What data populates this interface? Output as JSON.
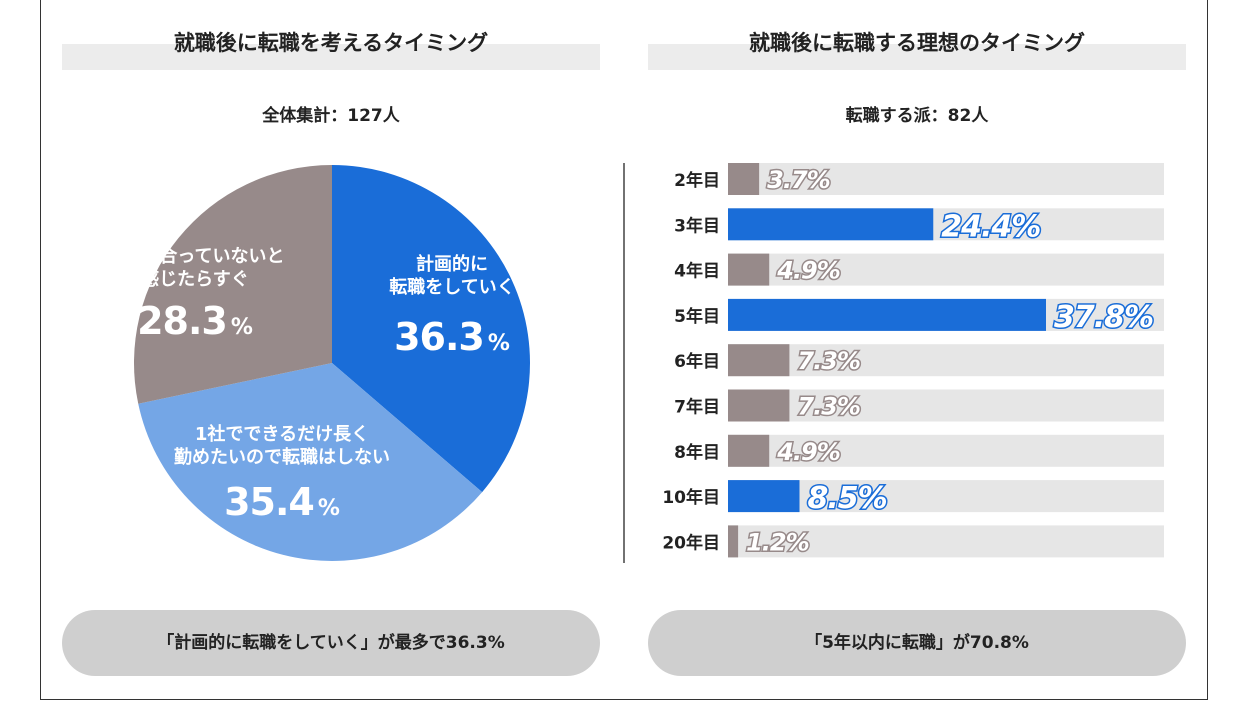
{
  "left_panel": {
    "title": "就職後に転職を考えるタイミング",
    "subtitle": "全体集計：127人",
    "summary": "「計画的に転職をしていく」が最多で36.3%"
  },
  "right_panel": {
    "title": "就職後に転職する理想のタイミング",
    "subtitle": "転職する派：82人",
    "summary": "「5年以内に転職」が70.8%"
  },
  "chart_data": [
    {
      "type": "pie",
      "slices": [
        {
          "label_lines": [
            "計画的に",
            "転職をしていく"
          ],
          "value": 36.3,
          "value_text": "36.3",
          "color": "#1a6dd8"
        },
        {
          "label_lines": [
            "1社でできるだけ長く",
            "勤めたいので転職はしない"
          ],
          "value": 35.4,
          "value_text": "35.4",
          "color": "#74a6e6"
        },
        {
          "label_lines": [
            "自分に合っていないと",
            "感じたらすぐ"
          ],
          "value": 28.3,
          "value_text": "28.3",
          "color": "#978a8a"
        }
      ],
      "percent_sign": "%",
      "start_angle_deg": 0,
      "direction": "clockwise"
    },
    {
      "type": "bar",
      "orientation": "horizontal",
      "categories": [
        "2年目",
        "3年目",
        "4年目",
        "5年目",
        "6年目",
        "7年目",
        "8年目",
        "10年目",
        "20年目"
      ],
      "values": [
        3.7,
        24.4,
        4.9,
        37.8,
        7.3,
        7.3,
        4.9,
        8.5,
        1.2
      ],
      "value_labels": [
        "3.7%",
        "24.4%",
        "4.9%",
        "37.8%",
        "7.3%",
        "7.3%",
        "4.9%",
        "8.5%",
        "1.2%"
      ],
      "highlight": [
        false,
        true,
        false,
        true,
        false,
        false,
        false,
        true,
        false
      ],
      "colors": {
        "highlight": "#1a6dd8",
        "normal": "#978a8a",
        "track": "#e6e6e6"
      },
      "xlim": [
        0,
        40
      ]
    }
  ]
}
